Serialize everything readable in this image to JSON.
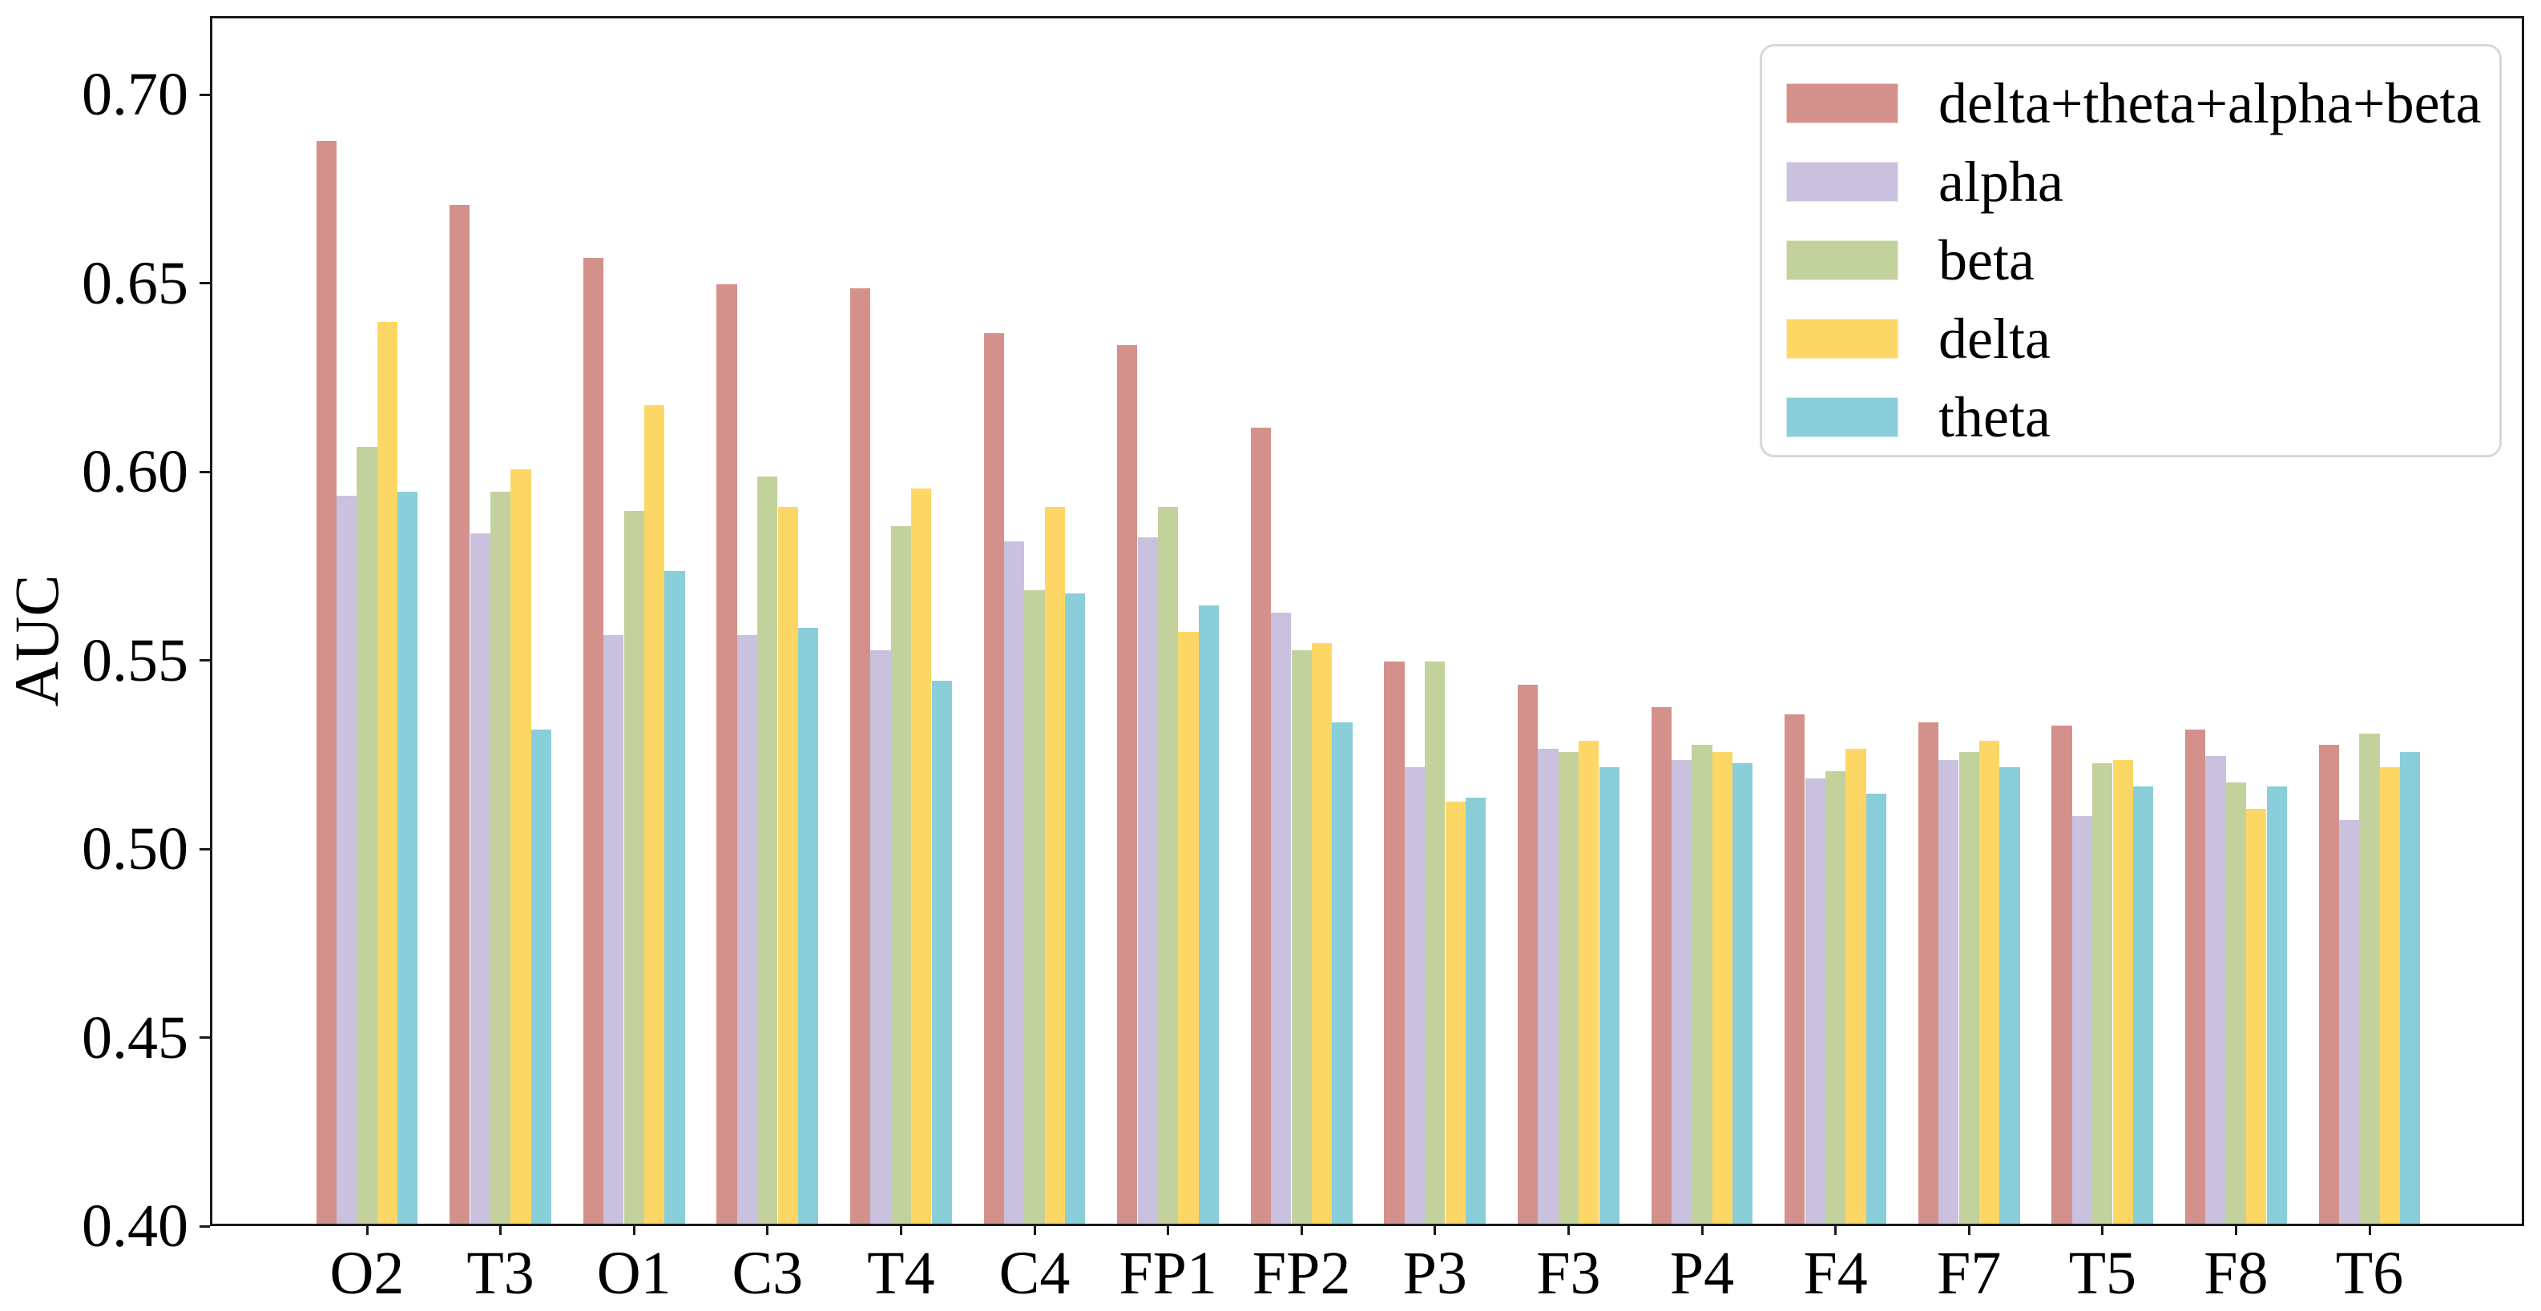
{
  "chart_data": {
    "type": "bar",
    "title": "",
    "xlabel": "",
    "ylabel": "AUC",
    "categories": [
      "O2",
      "T3",
      "O1",
      "C3",
      "T4",
      "C4",
      "FP1",
      "FP2",
      "P3",
      "F3",
      "P4",
      "F4",
      "F7",
      "T5",
      "F8",
      "T6"
    ],
    "series": [
      {
        "name": "delta+theta+alpha+beta",
        "color": "#d4918b",
        "values": [
          0.687,
          0.67,
          0.656,
          0.649,
          0.648,
          0.636,
          0.633,
          0.611,
          0.549,
          0.543,
          0.537,
          0.535,
          0.533,
          0.532,
          0.531,
          0.527
        ]
      },
      {
        "name": "alpha",
        "color": "#c9c1dd",
        "values": [
          0.593,
          0.583,
          0.556,
          0.556,
          0.552,
          0.581,
          0.582,
          0.562,
          0.521,
          0.526,
          0.523,
          0.518,
          0.523,
          0.508,
          0.524,
          0.507
        ]
      },
      {
        "name": "beta",
        "color": "#c3d19c",
        "values": [
          0.606,
          0.594,
          0.589,
          0.598,
          0.585,
          0.568,
          0.59,
          0.552,
          0.549,
          0.525,
          0.527,
          0.52,
          0.525,
          0.522,
          0.517,
          0.53
        ]
      },
      {
        "name": "delta",
        "color": "#fdd765",
        "values": [
          0.639,
          0.6,
          0.617,
          0.59,
          0.595,
          0.59,
          0.557,
          0.554,
          0.512,
          0.528,
          0.525,
          0.526,
          0.528,
          0.523,
          0.51,
          0.521
        ]
      },
      {
        "name": "theta",
        "color": "#8aceda",
        "values": [
          0.594,
          0.531,
          0.573,
          0.558,
          0.544,
          0.567,
          0.564,
          0.533,
          0.513,
          0.521,
          0.522,
          0.514,
          0.521,
          0.516,
          0.516,
          0.525
        ]
      }
    ],
    "ylim": [
      0.4,
      0.721
    ],
    "yticks": [
      "0.40",
      "0.45",
      "0.50",
      "0.55",
      "0.60",
      "0.65",
      "0.70"
    ],
    "grid": false,
    "legend_position": "upper right"
  }
}
